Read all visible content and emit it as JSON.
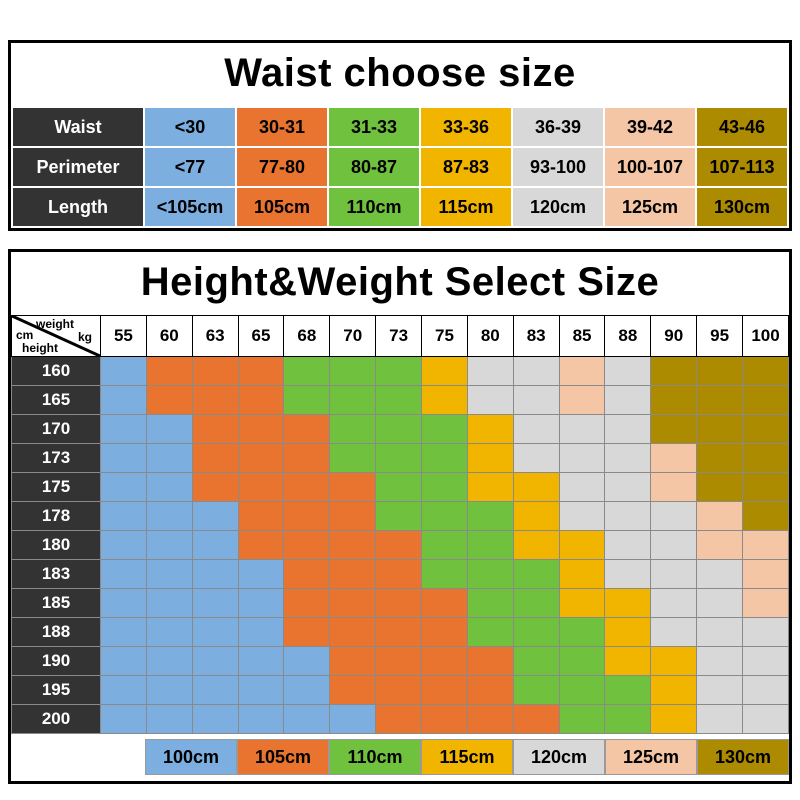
{
  "palette": {
    "B": "#7CAFE0",
    "O": "#E8742F",
    "G": "#6FC13E",
    "Y": "#F1B500",
    "S": "#D8D8D8",
    "P": "#F4C6A6",
    "D": "#AD8B00",
    "W": "#FFFFFF",
    "label_bg": "#333333",
    "border": "#000000"
  },
  "chart_data": [
    {
      "type": "table",
      "title": "Waist choose size",
      "rows": [
        {
          "label": "Waist",
          "cells": [
            {
              "text": "<30",
              "color": "B"
            },
            {
              "text": "30-31",
              "color": "O"
            },
            {
              "text": "31-33",
              "color": "G"
            },
            {
              "text": "33-36",
              "color": "Y"
            },
            {
              "text": "36-39",
              "color": "S"
            },
            {
              "text": "39-42",
              "color": "P"
            },
            {
              "text": "43-46",
              "color": "D"
            }
          ]
        },
        {
          "label": "Perimeter",
          "cells": [
            {
              "text": "<77",
              "color": "B"
            },
            {
              "text": "77-80",
              "color": "O"
            },
            {
              "text": "80-87",
              "color": "G"
            },
            {
              "text": "87-83",
              "color": "Y"
            },
            {
              "text": "93-100",
              "color": "S"
            },
            {
              "text": "100-107",
              "color": "P"
            },
            {
              "text": "107-113",
              "color": "D"
            }
          ]
        },
        {
          "label": "Length",
          "cells": [
            {
              "text": "<105cm",
              "color": "B"
            },
            {
              "text": "105cm",
              "color": "O"
            },
            {
              "text": "110cm",
              "color": "G"
            },
            {
              "text": "115cm",
              "color": "Y"
            },
            {
              "text": "120cm",
              "color": "S"
            },
            {
              "text": "125cm",
              "color": "P"
            },
            {
              "text": "130cm",
              "color": "D"
            }
          ]
        }
      ]
    },
    {
      "type": "heatmap",
      "title": "Height&Weight Select Size",
      "xlabel": "weight kg",
      "ylabel": "cm height",
      "corner": {
        "top": "weight",
        "top_unit": "kg",
        "bottom_unit": "cm",
        "bottom": "height"
      },
      "x": [
        "55",
        "60",
        "63",
        "65",
        "68",
        "70",
        "73",
        "75",
        "80",
        "83",
        "85",
        "88",
        "90",
        "95",
        "100"
      ],
      "y": [
        "160",
        "165",
        "170",
        "173",
        "175",
        "178",
        "180",
        "183",
        "185",
        "188",
        "190",
        "195",
        "200"
      ],
      "cells": [
        [
          "B",
          "O",
          "O",
          "O",
          "G",
          "G",
          "G",
          "Y",
          "S",
          "S",
          "P",
          "S",
          "D",
          "D",
          "D"
        ],
        [
          "B",
          "O",
          "O",
          "O",
          "G",
          "G",
          "G",
          "Y",
          "S",
          "S",
          "P",
          "S",
          "D",
          "D",
          "D"
        ],
        [
          "B",
          "B",
          "O",
          "O",
          "O",
          "G",
          "G",
          "G",
          "Y",
          "S",
          "S",
          "S",
          "D",
          "D",
          "D"
        ],
        [
          "B",
          "B",
          "O",
          "O",
          "O",
          "G",
          "G",
          "G",
          "Y",
          "S",
          "S",
          "S",
          "P",
          "D",
          "D"
        ],
        [
          "B",
          "B",
          "O",
          "O",
          "O",
          "O",
          "G",
          "G",
          "Y",
          "Y",
          "S",
          "S",
          "P",
          "D",
          "D"
        ],
        [
          "B",
          "B",
          "B",
          "O",
          "O",
          "O",
          "G",
          "G",
          "G",
          "Y",
          "S",
          "S",
          "S",
          "P",
          "D"
        ],
        [
          "B",
          "B",
          "B",
          "O",
          "O",
          "O",
          "O",
          "G",
          "G",
          "Y",
          "Y",
          "S",
          "S",
          "P",
          "P"
        ],
        [
          "B",
          "B",
          "B",
          "B",
          "O",
          "O",
          "O",
          "G",
          "G",
          "G",
          "Y",
          "S",
          "S",
          "S",
          "P"
        ],
        [
          "B",
          "B",
          "B",
          "B",
          "O",
          "O",
          "O",
          "O",
          "G",
          "G",
          "Y",
          "Y",
          "S",
          "S",
          "P"
        ],
        [
          "B",
          "B",
          "B",
          "B",
          "O",
          "O",
          "O",
          "O",
          "G",
          "G",
          "G",
          "Y",
          "S",
          "S",
          "S"
        ],
        [
          "B",
          "B",
          "B",
          "B",
          "B",
          "O",
          "O",
          "O",
          "O",
          "G",
          "G",
          "Y",
          "Y",
          "S",
          "S"
        ],
        [
          "B",
          "B",
          "B",
          "B",
          "B",
          "O",
          "O",
          "O",
          "O",
          "G",
          "G",
          "G",
          "Y",
          "S",
          "S"
        ],
        [
          "B",
          "B",
          "B",
          "B",
          "B",
          "B",
          "O",
          "O",
          "O",
          "O",
          "G",
          "G",
          "Y",
          "S",
          "S"
        ]
      ],
      "legend": [
        {
          "text": "100cm",
          "color": "B"
        },
        {
          "text": "105cm",
          "color": "O"
        },
        {
          "text": "110cm",
          "color": "G"
        },
        {
          "text": "115cm",
          "color": "Y"
        },
        {
          "text": "120cm",
          "color": "S"
        },
        {
          "text": "125cm",
          "color": "P"
        },
        {
          "text": "130cm",
          "color": "D"
        }
      ],
      "color_sizes": {
        "B": "100cm",
        "O": "105cm",
        "G": "110cm",
        "Y": "115cm",
        "S": "120cm",
        "P": "125cm",
        "D": "130cm"
      }
    }
  ]
}
